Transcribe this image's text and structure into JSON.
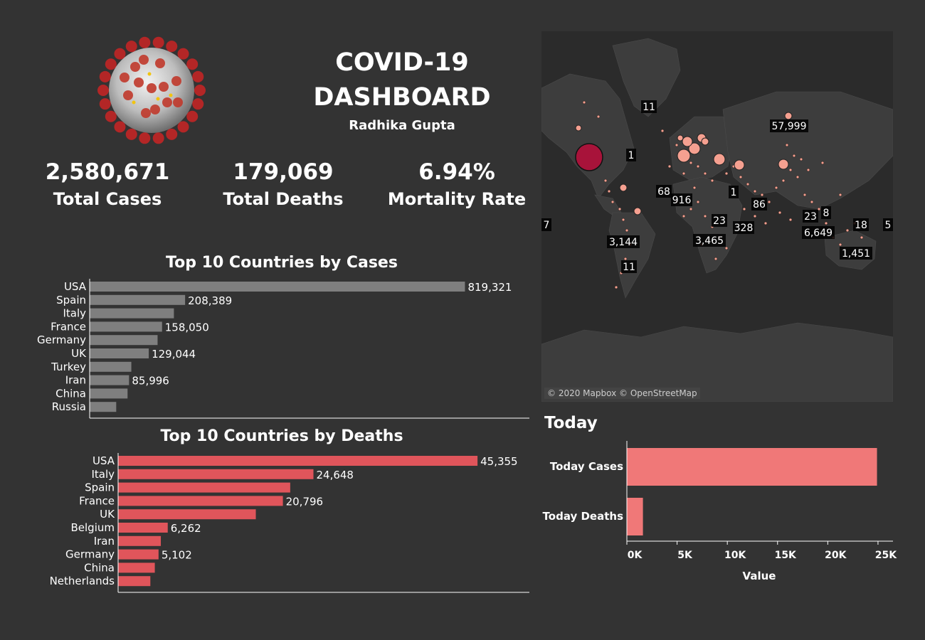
{
  "header": {
    "title_line1": "COVID-19",
    "title_line2": "DASHBOARD",
    "author": "Radhika Gupta"
  },
  "kpis": [
    {
      "value": "2,580,671",
      "label": "Total Cases"
    },
    {
      "value": "179,069",
      "label": "Total Deaths"
    },
    {
      "value": "6.94%",
      "label": "Mortality Rate"
    }
  ],
  "colors": {
    "background": "#333333",
    "cases_bar": "#7f7f7f",
    "deaths_bar": "#e0555b",
    "today_bar": "#f07878",
    "map_bubble": "#f5a090",
    "map_usa_bubble": "#a8133a"
  },
  "map": {
    "credit": "© 2020 Mapbox © OpenStreetMap",
    "labels": [
      "11",
      "57,999",
      "1",
      "68",
      "916",
      "1",
      "86",
      "23",
      "8",
      "7",
      "3,144",
      "23",
      "328",
      "6,649",
      "18",
      "5",
      "3,465",
      "1,451",
      "11"
    ]
  },
  "chart_data": [
    {
      "type": "bar",
      "orientation": "horizontal",
      "title": "Top 10 Countries by Cases",
      "categories": [
        "USA",
        "Spain",
        "Italy",
        "France",
        "Germany",
        "UK",
        "Turkey",
        "Iran",
        "China",
        "Russia"
      ],
      "values": [
        819321,
        208389,
        183957,
        158050,
        148291,
        129044,
        90980,
        85996,
        82758,
        57999
      ],
      "value_labels": [
        "819,321",
        "208,389",
        "",
        "158,050",
        "",
        "129,044",
        "",
        "85,996",
        "",
        ""
      ],
      "xlim": [
        0,
        960000
      ]
    },
    {
      "type": "bar",
      "orientation": "horizontal",
      "title": "Top 10 Countries by Deaths",
      "categories": [
        "USA",
        "Italy",
        "Spain",
        "France",
        "UK",
        "Belgium",
        "Iran",
        "Germany",
        "China",
        "Netherlands"
      ],
      "values": [
        45355,
        24648,
        21717,
        20796,
        17378,
        6262,
        5391,
        5102,
        4632,
        4068
      ],
      "value_labels": [
        "45,355",
        "24,648",
        "",
        "20,796",
        "",
        "6,262",
        "",
        "5,102",
        "",
        ""
      ],
      "xlim": [
        0,
        51900
      ]
    },
    {
      "type": "bar",
      "orientation": "horizontal",
      "title": "Today",
      "categories": [
        "Today Cases",
        "Today Deaths"
      ],
      "values": [
        24900,
        1600
      ],
      "xlabel": "Value",
      "ticks": [
        0,
        5000,
        10000,
        15000,
        20000,
        25000
      ],
      "tick_labels": [
        "0K",
        "5K",
        "10K",
        "15K",
        "20K",
        "25K"
      ],
      "xlim": [
        0,
        25500
      ]
    }
  ]
}
